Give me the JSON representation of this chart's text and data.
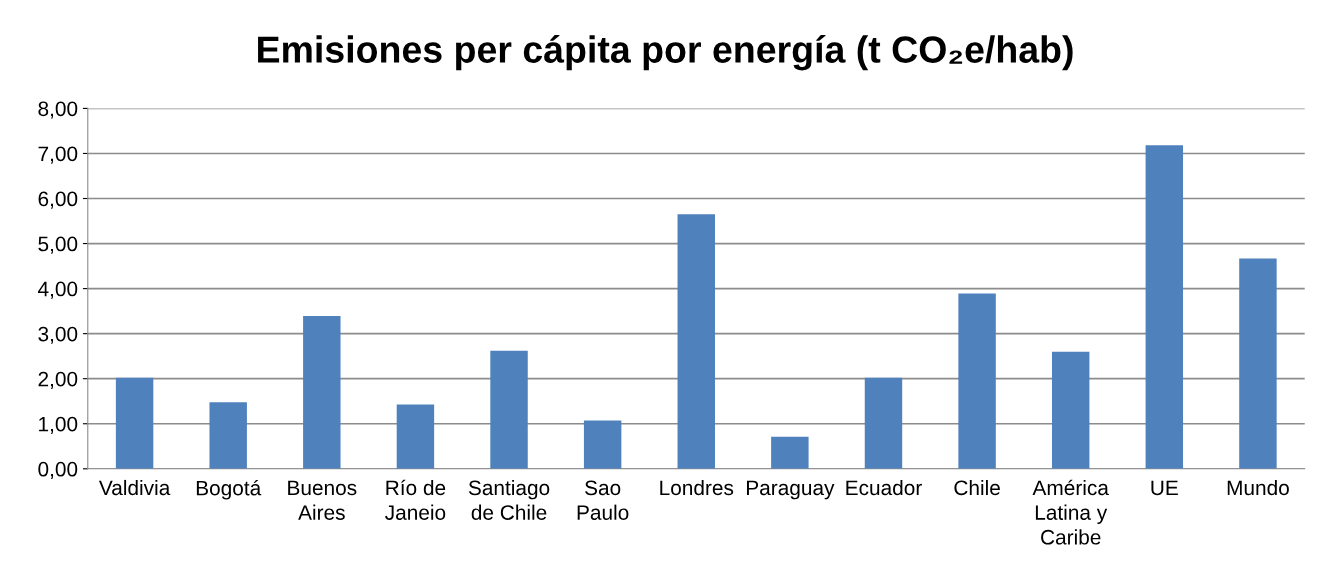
{
  "chart_data": {
    "type": "bar",
    "title": "Emisiones per cápita por energía (t CO₂e/hab)",
    "categories": [
      "Valdivia",
      "Bogotá",
      "Buenos\nAires",
      "Río de\nJaneio",
      "Santiago\nde Chile",
      "Sao\nPaulo",
      "Londres",
      "Paraguay",
      "Ecuador",
      "Chile",
      "América\nLatina y\nCaribe",
      "UE",
      "Mundo"
    ],
    "values": [
      2.02,
      1.48,
      3.39,
      1.43,
      2.62,
      1.07,
      5.65,
      0.71,
      2.02,
      3.89,
      2.6,
      7.18,
      4.67
    ],
    "color": "#4f81bd",
    "ylim": [
      0,
      8
    ],
    "yticks": [
      {
        "value": 0,
        "label": "0,00"
      },
      {
        "value": 1,
        "label": "1,00"
      },
      {
        "value": 2,
        "label": "2,00"
      },
      {
        "value": 3,
        "label": "3,00"
      },
      {
        "value": 4,
        "label": "4,00"
      },
      {
        "value": 5,
        "label": "5,00"
      },
      {
        "value": 6,
        "label": "6,00"
      },
      {
        "value": 7,
        "label": "7,00"
      },
      {
        "value": 8,
        "label": "8,00"
      }
    ],
    "grid": "y"
  }
}
